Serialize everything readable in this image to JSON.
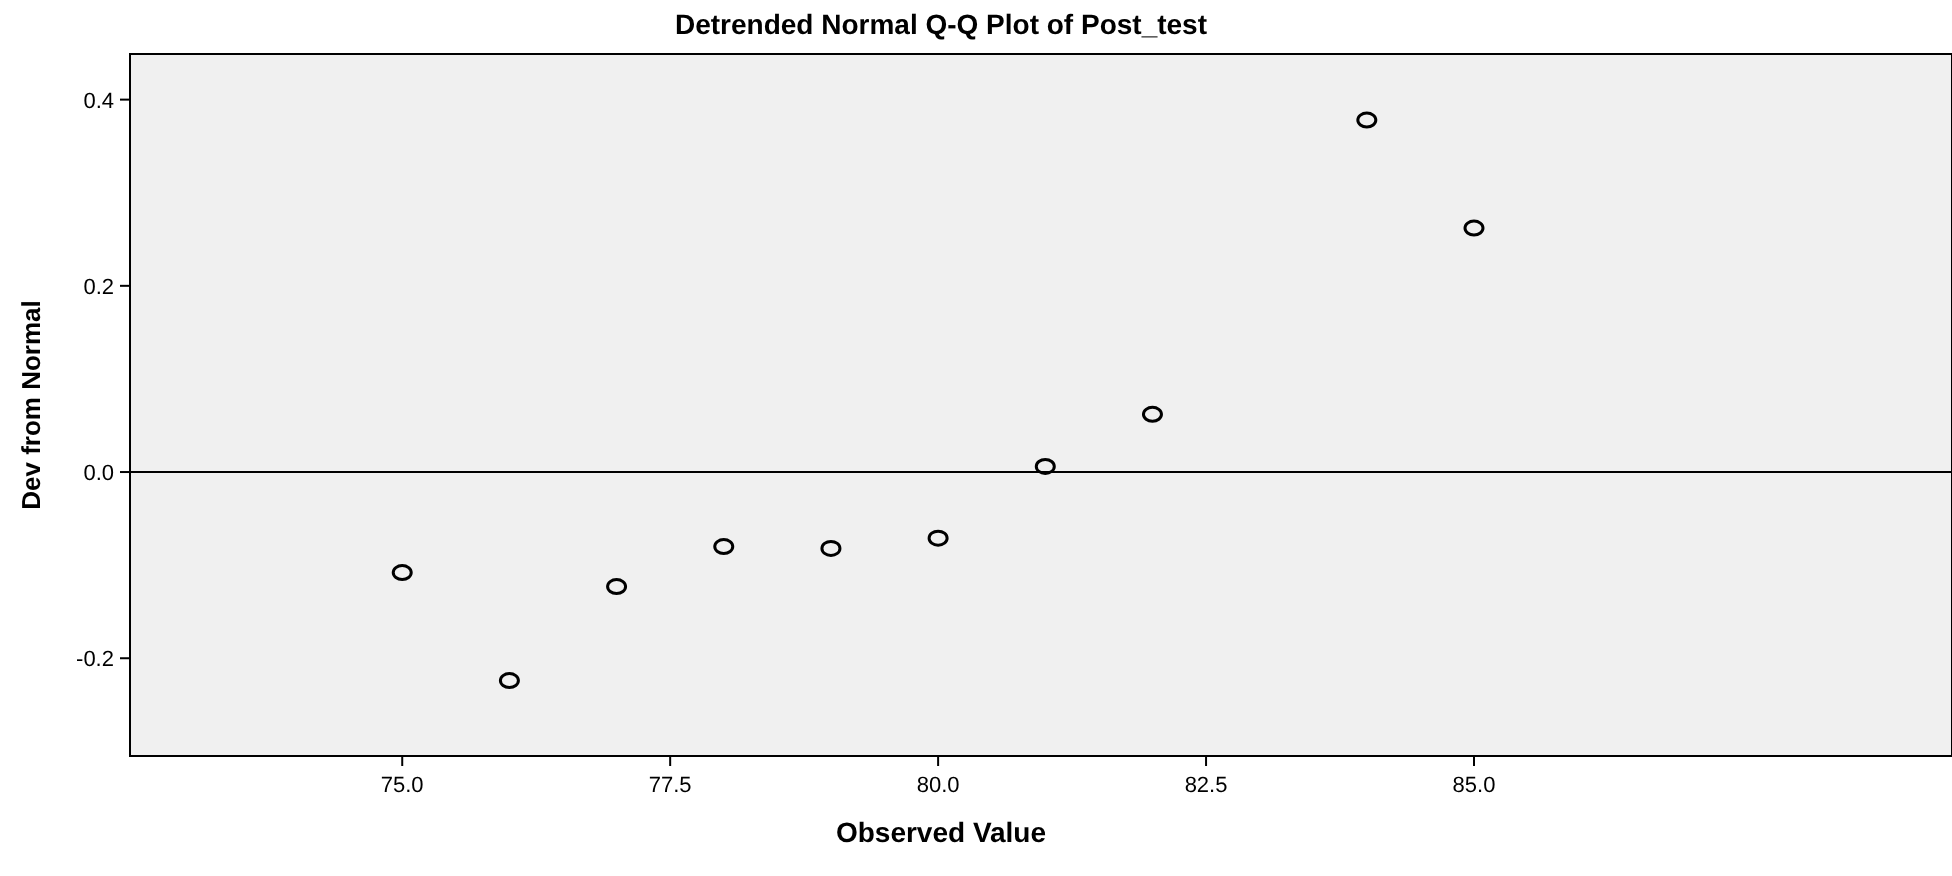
{
  "chart_data": {
    "type": "scatter",
    "title": "Detrended Normal Q-Q Plot of Post_test",
    "xlabel": "Observed Value",
    "ylabel": "Dev from Normal",
    "x": [
      75,
      76,
      77,
      78,
      79,
      80,
      81,
      82,
      84,
      85
    ],
    "series": [
      {
        "color": "#000000",
        "values": [
          -0.108,
          -0.224,
          -0.123,
          -0.08,
          -0.082,
          -0.071,
          0.006,
          0.062,
          0.378,
          0.262
        ]
      }
    ],
    "xlim": [
      72.46,
      89.46
    ],
    "ylim": [
      -0.305,
      0.449
    ],
    "xticks": [
      {
        "value": 75,
        "label": "75.0"
      },
      {
        "value": 77.5,
        "label": "77.5"
      },
      {
        "value": 80,
        "label": "80.0"
      },
      {
        "value": 82.5,
        "label": "82.5"
      },
      {
        "value": 85,
        "label": "85.0"
      }
    ],
    "yticks": [
      {
        "value": -0.2,
        "label": "-0.2"
      },
      {
        "value": 0,
        "label": "0.0"
      },
      {
        "value": 0.2,
        "label": "0.2"
      },
      {
        "value": 0.4,
        "label": "0.4"
      }
    ],
    "ref_lines": [
      {
        "axis": "y",
        "value": 0,
        "color": "#000000"
      }
    ],
    "marker": "circle"
  }
}
